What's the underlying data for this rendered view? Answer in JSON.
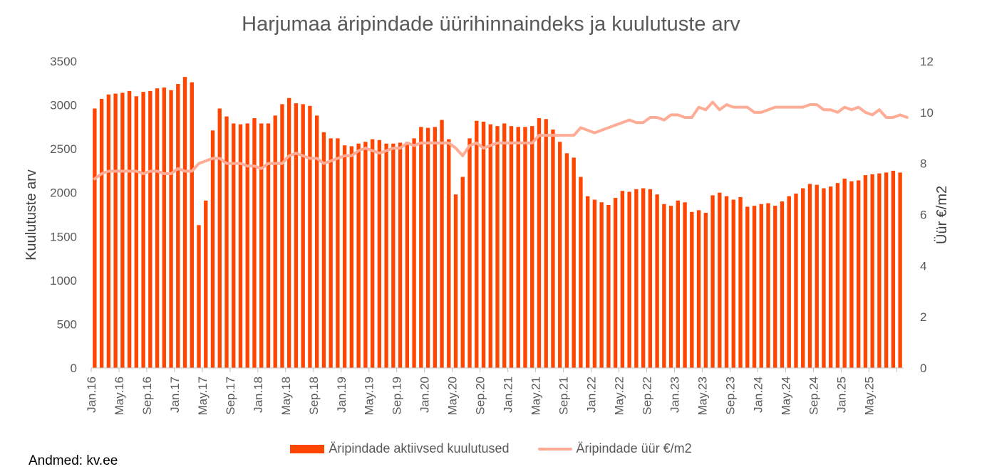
{
  "chart_data": {
    "type": "bar",
    "title": "Harjumaa äripindade üürihinnaindeks ja kuulutuste arv",
    "ylabel": "Kuulutuste arv",
    "y2label": "Üür €/m2",
    "ylim": [
      0,
      3500
    ],
    "y2lim": [
      0,
      12
    ],
    "yticks": [
      "0",
      "500",
      "1000",
      "1500",
      "2000",
      "2500",
      "3000",
      "3500"
    ],
    "y2ticks": [
      "0",
      "2",
      "4",
      "6",
      "8",
      "10",
      "12"
    ],
    "tick_labels": [
      "Jan.16",
      "May.16",
      "Sep.16",
      "Jan.17",
      "May.17",
      "Sep.17",
      "Jan.18",
      "May.18",
      "Sep.18",
      "Jan.19",
      "May.19",
      "Sep.19",
      "Jan.20",
      "May.20",
      "Sep.20",
      "Jan.21",
      "May.21",
      "Sep.21",
      "Jan.22",
      "May.22",
      "Sep.22",
      "Jan.23",
      "May.23",
      "Sep.23",
      "Jan.24",
      "May.24",
      "Sep.24",
      "Jan.25",
      "May.25"
    ],
    "grid": false,
    "legend_position": "bottom",
    "series": [
      {
        "name": "Äripindade aktiivsed kuulutused",
        "kind": "bar",
        "axis": "left",
        "color": "#FF4500",
        "values": [
          2960,
          3070,
          3120,
          3130,
          3140,
          3160,
          3100,
          3150,
          3160,
          3190,
          3200,
          3170,
          3240,
          3320,
          3260,
          1630,
          1910,
          2710,
          2960,
          2870,
          2790,
          2780,
          2790,
          2850,
          2790,
          2790,
          2880,
          3010,
          3080,
          3020,
          3010,
          2990,
          2880,
          2690,
          2620,
          2620,
          2540,
          2530,
          2560,
          2580,
          2610,
          2600,
          2560,
          2560,
          2570,
          2580,
          2620,
          2750,
          2740,
          2750,
          2830,
          2610,
          1980,
          2180,
          2620,
          2820,
          2810,
          2780,
          2760,
          2790,
          2760,
          2750,
          2750,
          2760,
          2850,
          2840,
          2720,
          2580,
          2450,
          2400,
          2180,
          1960,
          1920,
          1890,
          1860,
          1940,
          2020,
          2010,
          2040,
          2050,
          2040,
          1980,
          1870,
          1850,
          1910,
          1890,
          1780,
          1800,
          1770,
          1970,
          2000,
          1960,
          1920,
          1950,
          1840,
          1850,
          1870,
          1880,
          1850,
          1900,
          1960,
          1990,
          2050,
          2100,
          2090,
          2050,
          2070,
          2110,
          2160,
          2130,
          2140,
          2200,
          2210,
          2220,
          2230,
          2250,
          2230
        ]
      },
      {
        "name": "Äripindade üür €/m2",
        "kind": "line",
        "axis": "right",
        "color": "#FFAC96",
        "values": [
          7.4,
          7.6,
          7.7,
          7.7,
          7.7,
          7.7,
          7.7,
          7.6,
          7.7,
          7.7,
          7.6,
          7.6,
          7.8,
          7.7,
          7.7,
          8.0,
          8.1,
          8.2,
          8.2,
          8.0,
          8.0,
          8.0,
          7.9,
          7.9,
          7.8,
          8.0,
          8.0,
          8.0,
          8.3,
          8.4,
          8.3,
          8.2,
          8.2,
          8.0,
          8.1,
          8.2,
          8.3,
          8.3,
          8.5,
          8.6,
          8.5,
          8.4,
          8.5,
          8.6,
          8.6,
          8.8,
          8.7,
          8.8,
          8.8,
          8.8,
          8.8,
          8.8,
          8.6,
          8.3,
          8.7,
          8.8,
          8.6,
          8.7,
          8.8,
          8.8,
          8.8,
          8.8,
          8.8,
          8.8,
          9.1,
          9.1,
          9.1,
          9.1,
          9.1,
          9.1,
          9.4,
          9.3,
          9.2,
          9.3,
          9.4,
          9.5,
          9.6,
          9.7,
          9.6,
          9.6,
          9.8,
          9.8,
          9.7,
          9.9,
          9.9,
          9.8,
          9.8,
          10.2,
          10.1,
          10.4,
          10.1,
          10.3,
          10.2,
          10.2,
          10.2,
          10.0,
          10.0,
          10.1,
          10.2,
          10.2,
          10.2,
          10.2,
          10.2,
          10.3,
          10.3,
          10.1,
          10.1,
          10.0,
          10.2,
          10.1,
          10.2,
          10.0,
          9.9,
          10.1,
          9.8,
          9.8,
          9.9,
          9.8
        ]
      }
    ]
  },
  "source_note": "Andmed: kv.ee"
}
